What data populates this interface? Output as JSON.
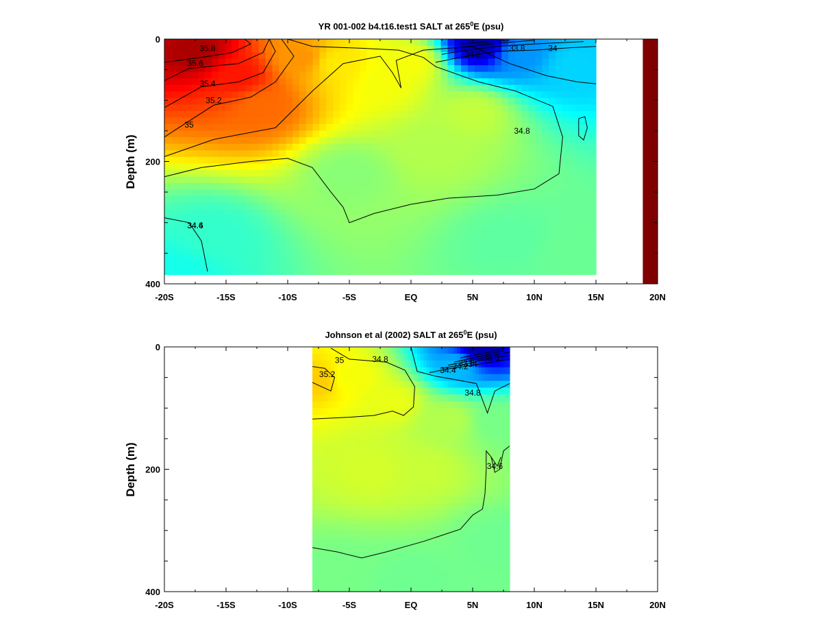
{
  "chart_data": [
    {
      "type": "heatmap",
      "subtype": "filled-contour",
      "title": "YR 001-002 b4.t16.test1 SALT at 265",
      "title_sup": "0",
      "title_suffix": "E (psu)",
      "xlabel": "",
      "ylabel": "Depth (m)",
      "xlim": [
        -20,
        20
      ],
      "ylim": [
        400,
        0
      ],
      "x_tick_values": [
        -20,
        -15,
        -10,
        -5,
        0,
        5,
        10,
        15,
        20
      ],
      "x_tick_labels": [
        "-20S",
        "-15S",
        "-10S",
        "-5S",
        "EQ",
        "5N",
        "10N",
        "15N",
        "20N"
      ],
      "y_tick_values": [
        0,
        200,
        400
      ],
      "y_tick_labels": [
        "0",
        "200",
        "400"
      ],
      "colormap": "jet",
      "color_range_psu": [
        33.6,
        36.0
      ],
      "grid": false,
      "legend": "none",
      "data_extent_lat": [
        -20,
        15
      ],
      "data_extent_depth": [
        0,
        385
      ],
      "land_block": {
        "lat": [
          18.8,
          20
        ],
        "depth": [
          0,
          400
        ],
        "value": 36.0
      },
      "salinity_field": [
        {
          "lat": -17.5,
          "depth": 20,
          "value": 35.9
        },
        {
          "lat": -14,
          "depth": 60,
          "value": 35.65
        },
        {
          "lat": -12,
          "depth": 110,
          "value": 35.45
        },
        {
          "lat": -9,
          "depth": 30,
          "value": 35.35
        },
        {
          "lat": -6,
          "depth": 40,
          "value": 35.15
        },
        {
          "lat": -2,
          "depth": 70,
          "value": 35.08
        },
        {
          "lat": 0,
          "depth": 40,
          "value": 35.08
        },
        {
          "lat": 5,
          "depth": 120,
          "value": 34.96
        },
        {
          "lat": 5.5,
          "depth": 10,
          "value": 33.7
        },
        {
          "lat": 9,
          "depth": 25,
          "value": 34.25
        },
        {
          "lat": 13,
          "depth": 45,
          "value": 34.4
        },
        {
          "lat": 2,
          "depth": 180,
          "value": 34.92
        },
        {
          "lat": -5,
          "depth": 220,
          "value": 34.82
        },
        {
          "lat": -16,
          "depth": 320,
          "value": 34.62
        },
        {
          "lat": -19,
          "depth": 380,
          "value": 34.55
        },
        {
          "lat": 8,
          "depth": 330,
          "value": 34.72
        },
        {
          "lat": 13,
          "depth": 350,
          "value": 34.75
        }
      ],
      "contours": [
        {
          "level": 35.8,
          "label": "35.8",
          "label_at": [
            -16.5,
            15
          ],
          "path": [
            [
              -20,
              38
            ],
            [
              -17,
              30
            ],
            [
              -14.5,
              22
            ],
            [
              -13,
              8
            ],
            [
              -13.5,
              0
            ]
          ]
        },
        {
          "level": 35.6,
          "label": "35.6",
          "label_at": [
            -17.5,
            40
          ],
          "path": [
            [
              -20,
              68
            ],
            [
              -18,
              48
            ],
            [
              -14,
              40
            ],
            [
              -12,
              22
            ],
            [
              -11.5,
              0
            ]
          ]
        },
        {
          "level": 35.4,
          "label": "35.4",
          "label_at": [
            -16.5,
            73
          ],
          "path": [
            [
              -20,
              112
            ],
            [
              -17,
              78
            ],
            [
              -14,
              70
            ],
            [
              -12,
              55
            ],
            [
              -11,
              20
            ],
            [
              -11.5,
              0
            ]
          ]
        },
        {
          "level": 35.2,
          "label": "35.2",
          "label_at": [
            -16,
            100
          ],
          "path": [
            [
              -20,
              160
            ],
            [
              -16,
              108
            ],
            [
              -13,
              95
            ],
            [
              -11,
              70
            ],
            [
              -9.5,
              28
            ],
            [
              -10.5,
              0
            ]
          ]
        },
        {
          "level": 35.0,
          "label": "35",
          "label_at": [
            -18,
            140
          ],
          "path": [
            [
              -20,
              192
            ],
            [
              -16,
              164
            ],
            [
              -11,
              145
            ],
            [
              -8,
              85
            ],
            [
              -5.5,
              40
            ],
            [
              -2.5,
              28
            ],
            [
              -1.5,
              55
            ],
            [
              -0.8,
              80
            ],
            [
              -1.2,
              35
            ],
            [
              1,
              18
            ],
            [
              5,
              12
            ],
            [
              8,
              40
            ],
            [
              11,
              60
            ],
            [
              13.5,
              70
            ],
            [
              15,
              73
            ]
          ]
        },
        {
          "level": 34.8,
          "label": "34.8",
          "label_at": [
            9,
            150
          ],
          "path": [
            [
              -20,
              225
            ],
            [
              -17,
              210
            ],
            [
              -13,
              200
            ],
            [
              -10,
              195
            ],
            [
              -8,
              210
            ],
            [
              -6.5,
              250
            ],
            [
              -5.5,
              275
            ],
            [
              -5,
              300
            ],
            [
              -3,
              285
            ],
            [
              0,
              270
            ],
            [
              3,
              260
            ],
            [
              7,
              255
            ],
            [
              10,
              245
            ],
            [
              12,
              220
            ],
            [
              12.3,
              160
            ],
            [
              11.5,
              110
            ],
            [
              8.5,
              85
            ],
            [
              5.5,
              70
            ],
            [
              2,
              45
            ],
            [
              1,
              30
            ],
            [
              -1,
              18
            ],
            [
              -4,
              15
            ],
            [
              -8,
              12
            ],
            [
              -10,
              0
            ]
          ]
        },
        {
          "level": 34.6,
          "label": "34.6",
          "label_at": [
            -17.5,
            305
          ],
          "path": [
            [
              -20,
              292
            ],
            [
              -18,
              300
            ],
            [
              -17,
              330
            ],
            [
              -16.5,
              380
            ]
          ]
        },
        {
          "level": 34.4,
          "label": "34.4",
          "label_at": [
            -17.5,
            305
          ],
          "path": [
            [
              2,
              38
            ],
            [
              4,
              30
            ],
            [
              7,
              20
            ],
            [
              10,
              18
            ],
            [
              13,
              14
            ],
            [
              15,
              12
            ]
          ]
        },
        {
          "level": 34.2,
          "label": "34.2",
          "label_at": [
            5,
            25
          ],
          "path": [
            [
              2.5,
              25
            ],
            [
              4.5,
              18
            ],
            [
              7,
              12
            ],
            [
              10,
              8
            ],
            [
              14,
              4
            ]
          ]
        },
        {
          "level": 34.0,
          "label": "34",
          "label_at": [
            11.5,
            15
          ],
          "path": [
            [
              3.5,
              15
            ],
            [
              5.5,
              10
            ],
            [
              8,
              5
            ],
            [
              10,
              2
            ]
          ]
        },
        {
          "level": 33.8,
          "label": "33.8",
          "label_at": [
            8.6,
            15
          ],
          "path": [
            [
              4,
              8
            ],
            [
              6,
              5
            ],
            [
              8,
              2
            ]
          ]
        },
        {
          "level": 35.0,
          "label": "",
          "label_at": [
            13.5,
            140
          ],
          "path": [
            [
              13.6,
              130
            ],
            [
              14.1,
              127
            ],
            [
              14.3,
              145
            ],
            [
              14.0,
              165
            ],
            [
              13.6,
              158
            ],
            [
              13.6,
              130
            ]
          ]
        }
      ]
    },
    {
      "type": "heatmap",
      "subtype": "filled-contour",
      "title": "Johnson et al (2002) SALT at 265",
      "title_sup": "0",
      "title_suffix": "E (psu)",
      "xlabel": "",
      "ylabel": "Depth (m)",
      "xlim": [
        -20,
        20
      ],
      "ylim": [
        400,
        0
      ],
      "x_tick_values": [
        -20,
        -15,
        -10,
        -5,
        0,
        5,
        10,
        15,
        20
      ],
      "x_tick_labels": [
        "-20S",
        "-15S",
        "-10S",
        "-5S",
        "EQ",
        "5N",
        "10N",
        "15N",
        "20N"
      ],
      "y_tick_values": [
        0,
        200,
        400
      ],
      "y_tick_labels": [
        "0",
        "200",
        "400"
      ],
      "colormap": "jet",
      "color_range_psu": [
        33.6,
        36.0
      ],
      "grid": false,
      "legend": "none",
      "data_extent_lat": [
        -8,
        8
      ],
      "data_extent_depth": [
        0,
        400
      ],
      "salinity_field": [
        {
          "lat": -7.5,
          "depth": 55,
          "value": 35.22
        },
        {
          "lat": -5,
          "depth": 50,
          "value": 35.08
        },
        {
          "lat": -1.5,
          "depth": 90,
          "value": 35.05
        },
        {
          "lat": -3,
          "depth": 200,
          "value": 35.0
        },
        {
          "lat": 1,
          "depth": 200,
          "value": 34.97
        },
        {
          "lat": 3,
          "depth": 120,
          "value": 34.92
        },
        {
          "lat": 5.5,
          "depth": 8,
          "value": 33.7
        },
        {
          "lat": 4,
          "depth": 30,
          "value": 34.35
        },
        {
          "lat": 7,
          "depth": 120,
          "value": 34.78
        },
        {
          "lat": 7,
          "depth": 320,
          "value": 34.76
        },
        {
          "lat": -6,
          "depth": 370,
          "value": 34.78
        },
        {
          "lat": 0,
          "depth": 380,
          "value": 34.76
        }
      ],
      "contours": [
        {
          "level": 35.2,
          "label": "35.2",
          "label_at": [
            -6.8,
            45
          ],
          "path": [
            [
              -8,
              58
            ],
            [
              -6.5,
              72
            ],
            [
              -6.2,
              50
            ],
            [
              -7,
              35
            ],
            [
              -8,
              32
            ]
          ]
        },
        {
          "level": 35.0,
          "label": "35",
          "label_at": [
            -5.8,
            22
          ],
          "path": [
            [
              -8,
              118
            ],
            [
              -5,
              115
            ],
            [
              -3,
              112
            ],
            [
              -1.5,
              105
            ],
            [
              -0.6,
              112
            ],
            [
              0.2,
              98
            ],
            [
              0.3,
              65
            ],
            [
              -0.5,
              38
            ],
            [
              -2,
              25
            ],
            [
              -5,
              20
            ],
            [
              -6.5,
              2
            ]
          ]
        },
        {
          "level": 34.8,
          "label": "34.8",
          "label_at": [
            -2.5,
            20
          ],
          "path": [
            [
              -8,
              328
            ],
            [
              -6,
              335
            ],
            [
              -4,
              345
            ],
            [
              -2,
              335
            ],
            [
              1,
              318
            ],
            [
              4,
              298
            ],
            [
              5,
              275
            ],
            [
              5.8,
              265
            ],
            [
              6,
              240
            ],
            [
              6.1,
              200
            ],
            [
              6.1,
              170
            ],
            [
              6.5,
              180
            ],
            [
              6.8,
              205
            ],
            [
              7.2,
              200
            ],
            [
              7.5,
              170
            ],
            [
              8,
              162
            ]
          ]
        },
        {
          "level": 34.8,
          "label": "34.8",
          "label_at": [
            5,
            75
          ],
          "path": [
            [
              0,
              0
            ],
            [
              0.5,
              40
            ],
            [
              2,
              48
            ],
            [
              4,
              55
            ],
            [
              5.3,
              60
            ],
            [
              6.2,
              108
            ],
            [
              6.8,
              72
            ],
            [
              8,
              60
            ]
          ]
        },
        {
          "level": 34.6,
          "label": "34.6",
          "label_at": [
            6.8,
            195
          ],
          "path": [
            [
              6.5,
              180
            ],
            [
              7,
              195
            ],
            [
              7.3,
              180
            ]
          ]
        },
        {
          "level": 34.4,
          "label": "34.4",
          "label_at": [
            3,
            38
          ],
          "path": [
            [
              1.5,
              42
            ],
            [
              3,
              36
            ],
            [
              5,
              30
            ],
            [
              6.5,
              25
            ],
            [
              8,
              20
            ]
          ]
        },
        {
          "level": 34.2,
          "label": "34.2",
          "label_at": [
            4,
            32
          ],
          "path": [
            [
              2.5,
              35
            ],
            [
              4.5,
              28
            ],
            [
              6.5,
              18
            ],
            [
              8,
              14
            ]
          ]
        },
        {
          "level": 34.0,
          "label": "34",
          "label_at": [
            5,
            28
          ],
          "path": [
            [
              3,
              30
            ],
            [
              5,
              22
            ],
            [
              7,
              12
            ],
            [
              8,
              9
            ]
          ]
        },
        {
          "level": 33.8,
          "label": "33.8",
          "label_at": [
            4.5,
            27
          ],
          "path": [
            [
              3.5,
              25
            ],
            [
              5.5,
              16
            ],
            [
              7.5,
              6
            ]
          ]
        },
        {
          "level": 33.6,
          "label": "33.6",
          "label_at": [
            6.5,
            18
          ],
          "path": [
            [
              4,
              18
            ],
            [
              6,
              10
            ],
            [
              7.5,
              3
            ]
          ]
        }
      ]
    }
  ]
}
